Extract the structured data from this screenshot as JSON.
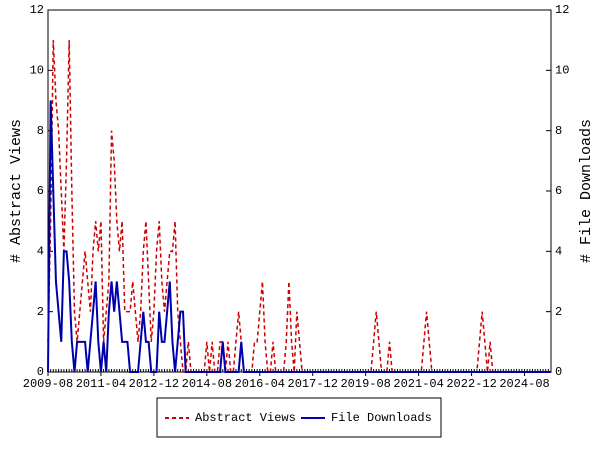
{
  "chart_data": {
    "type": "line",
    "y_label": "# Abstract Views",
    "y2_label": "# File Downloads",
    "x": [
      "2009-08",
      "2009-09",
      "2009-10",
      "2009-11",
      "2009-12",
      "2010-01",
      "2010-02",
      "2010-03",
      "2010-04",
      "2010-05",
      "2010-06",
      "2010-07",
      "2010-08",
      "2010-09",
      "2010-10",
      "2010-11",
      "2010-12",
      "2011-01",
      "2011-02",
      "2011-03",
      "2011-04",
      "2011-05",
      "2011-06",
      "2011-07",
      "2011-08",
      "2011-09",
      "2011-10",
      "2011-11",
      "2011-12",
      "2012-01",
      "2012-02",
      "2012-03",
      "2012-04",
      "2012-05",
      "2012-06",
      "2012-07",
      "2012-08",
      "2012-09",
      "2012-10",
      "2012-11",
      "2012-12",
      "2013-01",
      "2013-02",
      "2013-03",
      "2013-04",
      "2013-05",
      "2013-06",
      "2013-07",
      "2013-08",
      "2013-09",
      "2013-10",
      "2013-11",
      "2013-12",
      "2014-01",
      "2014-02",
      "2014-03",
      "2014-04",
      "2014-05",
      "2014-06",
      "2014-07",
      "2014-08",
      "2014-09",
      "2014-10",
      "2014-11",
      "2014-12",
      "2015-01",
      "2015-02",
      "2015-03",
      "2015-04",
      "2015-05",
      "2015-06",
      "2015-07",
      "2015-08",
      "2015-09",
      "2015-10",
      "2015-11",
      "2015-12",
      "2016-01",
      "2016-02",
      "2016-03",
      "2016-04",
      "2016-05",
      "2016-06",
      "2016-07",
      "2016-08",
      "2016-09",
      "2016-10",
      "2016-11",
      "2016-12",
      "2017-01",
      "2017-02",
      "2017-03",
      "2017-04",
      "2017-05",
      "2017-06",
      "2017-07",
      "2017-08",
      "2017-09",
      "2017-10",
      "2017-11",
      "2017-12",
      "2018-01",
      "2018-02",
      "2018-03",
      "2018-04",
      "2018-05",
      "2018-06",
      "2018-07",
      "2018-08",
      "2018-09",
      "2018-10",
      "2018-11",
      "2018-12",
      "2019-01",
      "2019-02",
      "2019-03",
      "2019-04",
      "2019-05",
      "2019-06",
      "2019-07",
      "2019-08",
      "2019-09",
      "2019-10",
      "2019-11",
      "2019-12",
      "2020-01",
      "2020-02",
      "2020-03",
      "2020-04",
      "2020-05",
      "2020-06",
      "2020-07",
      "2020-08",
      "2020-09",
      "2020-10",
      "2020-11",
      "2020-12",
      "2021-01",
      "2021-02",
      "2021-03",
      "2021-04",
      "2021-05",
      "2021-06",
      "2021-07",
      "2021-08",
      "2021-09",
      "2021-10",
      "2021-11",
      "2021-12",
      "2022-01",
      "2022-02",
      "2022-03",
      "2022-04",
      "2022-05",
      "2022-06",
      "2022-07",
      "2022-08",
      "2022-09",
      "2022-10",
      "2022-11",
      "2022-12",
      "2023-01",
      "2023-02",
      "2023-03",
      "2023-04",
      "2023-05",
      "2023-06",
      "2023-07",
      "2023-08",
      "2023-09",
      "2023-10",
      "2023-11",
      "2023-12",
      "2024-01",
      "2024-02",
      "2024-03",
      "2024-04",
      "2024-05",
      "2024-06",
      "2024-07",
      "2024-08",
      "2024-09",
      "2024-10",
      "2024-11",
      "2024-12",
      "2025-01",
      "2025-02",
      "2025-03",
      "2025-04",
      "2025-05",
      "2025-06"
    ],
    "xticks": [
      "2009-08",
      "2011-04",
      "2012-12",
      "2014-08",
      "2016-04",
      "2017-12",
      "2019-08",
      "2021-04",
      "2022-12",
      "2024-08"
    ],
    "ylim": [
      0,
      12
    ],
    "yticks": [
      0,
      2,
      4,
      6,
      8,
      10,
      12
    ],
    "y2lim": [
      0,
      12
    ],
    "y2ticks": [
      0,
      2,
      4,
      6,
      8,
      10,
      12
    ],
    "series": [
      {
        "name": "Abstract Views",
        "color": "#cc0000",
        "dashed": true,
        "values": [
          1,
          5,
          11,
          9,
          8,
          6,
          4,
          7,
          11,
          6,
          2,
          1,
          2,
          3,
          4,
          3,
          2,
          4,
          5,
          4,
          5,
          1,
          2,
          3,
          8,
          7,
          5,
          4,
          5,
          2,
          2,
          2,
          3,
          2,
          1,
          2,
          4,
          5,
          3,
          1,
          2,
          4,
          5,
          3,
          2,
          3,
          4,
          4,
          5,
          2,
          1,
          0,
          0,
          1,
          0,
          0,
          0,
          0,
          0,
          0,
          1,
          0,
          1,
          0,
          0,
          1,
          1,
          0,
          1,
          0,
          0,
          1,
          2,
          1,
          0,
          0,
          0,
          0,
          1,
          1,
          2,
          3,
          1,
          0,
          0,
          1,
          0,
          0,
          0,
          0,
          1,
          3,
          1,
          0,
          2,
          1,
          0,
          0,
          0,
          0,
          0,
          0,
          0,
          0,
          0,
          0,
          0,
          0,
          0,
          0,
          0,
          0,
          0,
          0,
          0,
          0,
          0,
          0,
          0,
          0,
          0,
          0,
          0,
          1,
          2,
          1,
          0,
          0,
          0,
          1,
          0,
          0,
          0,
          0,
          0,
          0,
          0,
          0,
          0,
          0,
          0,
          0,
          1,
          2,
          1,
          0,
          0,
          0,
          0,
          0,
          0,
          0,
          0,
          0,
          0,
          0,
          0,
          0,
          0,
          0,
          0,
          0,
          0,
          1,
          2,
          1,
          0,
          1,
          0,
          0,
          0,
          0,
          0,
          0,
          0,
          0,
          0,
          0,
          0,
          0,
          0,
          0,
          0,
          0,
          0,
          0,
          0,
          0,
          0,
          0,
          0
        ]
      },
      {
        "name": "File Downloads",
        "color": "#0000aa",
        "dashed": false,
        "axis": "y2",
        "values": [
          0,
          9,
          6,
          3,
          2,
          1,
          4,
          4,
          3,
          1,
          0,
          1,
          1,
          1,
          1,
          0,
          1,
          2,
          3,
          1,
          0,
          1,
          0,
          2,
          3,
          2,
          3,
          2,
          1,
          1,
          1,
          0,
          0,
          0,
          0,
          1,
          2,
          1,
          1,
          0,
          0,
          0,
          2,
          1,
          1,
          2,
          3,
          1,
          0,
          1,
          2,
          2,
          0,
          0,
          0,
          0,
          0,
          0,
          0,
          0,
          0,
          0,
          0,
          0,
          0,
          0,
          1,
          0,
          0,
          0,
          0,
          0,
          0,
          1,
          0,
          0,
          0,
          0,
          0,
          0,
          0,
          0,
          0,
          0,
          0,
          0,
          0,
          0,
          0,
          0,
          0,
          0,
          0,
          0,
          0,
          0,
          0,
          0,
          0,
          0,
          0,
          0,
          0,
          0,
          0,
          0,
          0,
          0,
          0,
          0,
          0,
          0,
          0,
          0,
          0,
          0,
          0,
          0,
          0,
          0,
          0,
          0,
          0,
          0,
          0,
          0,
          0,
          0,
          0,
          0,
          0,
          0,
          0,
          0,
          0,
          0,
          0,
          0,
          0,
          0,
          0,
          0,
          0,
          0,
          0,
          0,
          0,
          0,
          0,
          0,
          0,
          0,
          0,
          0,
          0,
          0,
          0,
          0,
          0,
          0,
          0,
          0,
          0,
          0,
          0,
          0,
          0,
          0,
          0,
          0,
          0,
          0,
          0,
          0,
          0,
          0,
          0,
          0,
          0,
          0,
          0,
          0,
          0,
          0,
          0,
          0,
          0,
          0,
          0,
          0,
          0
        ]
      }
    ]
  }
}
